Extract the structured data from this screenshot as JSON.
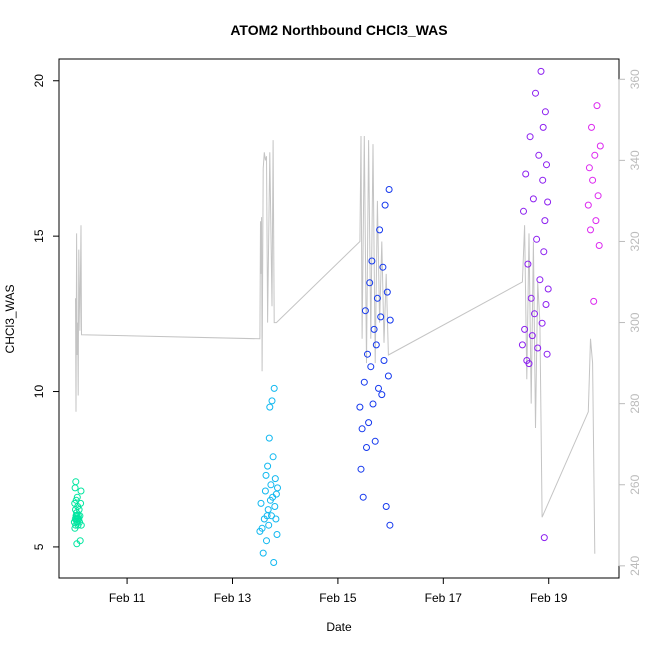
{
  "chart_data": {
    "type": "scatter",
    "title": "ATOM2 Northbound CHCl3_WAS",
    "xlabel": "Date",
    "ylabel": "CHCl3_WAS",
    "x_axis_type": "date",
    "xlim": [
      "2016-02-09T17:00",
      "2016-02-20T08:00"
    ],
    "ylim": [
      4.0,
      20.7
    ],
    "y2lim": [
      237,
      365
    ],
    "x_ticks": [
      {
        "date": "2016-02-11",
        "label": "Feb 11"
      },
      {
        "date": "2016-02-13",
        "label": "Feb 13"
      },
      {
        "date": "2016-02-15",
        "label": "Feb 15"
      },
      {
        "date": "2016-02-17",
        "label": "Feb 17"
      },
      {
        "date": "2016-02-19",
        "label": "Feb 19"
      }
    ],
    "y_ticks": [
      5,
      10,
      15,
      20
    ],
    "y2_ticks": [
      240,
      260,
      280,
      300,
      320,
      340,
      360
    ],
    "grid": false,
    "legend": "none",
    "colors": {
      "axis": "#000000",
      "secondary_axis": "#bbbbbb",
      "line": "#c4c4c4",
      "frame": "#000000"
    },
    "point_colors": [
      "#00e6a0",
      "#10b8f0",
      "#1438ee",
      "#8c1ff0",
      "#dc28f0"
    ],
    "line_series": {
      "axis": "right",
      "points": [
        [
          "2016-02-10T00:30",
          306
        ],
        [
          "2016-02-10T00:45",
          278
        ],
        [
          "2016-02-10T01:00",
          322
        ],
        [
          "2016-02-10T01:15",
          292
        ],
        [
          "2016-02-10T01:30",
          300
        ],
        [
          "2016-02-10T01:45",
          282
        ],
        [
          "2016-02-10T02:00",
          318
        ],
        [
          "2016-02-10T02:30",
          298
        ],
        [
          "2016-02-10T03:00",
          324
        ],
        [
          "2016-02-10T03:15",
          297
        ],
        [
          "2016-02-13T12:30",
          296
        ],
        [
          "2016-02-13T12:45",
          325
        ],
        [
          "2016-02-13T13:00",
          312
        ],
        [
          "2016-02-13T13:15",
          326
        ],
        [
          "2016-02-13T13:30",
          288
        ],
        [
          "2016-02-13T14:00",
          338
        ],
        [
          "2016-02-13T14:30",
          342
        ],
        [
          "2016-02-13T15:00",
          340
        ],
        [
          "2016-02-13T15:30",
          341
        ],
        [
          "2016-02-13T16:00",
          300
        ],
        [
          "2016-02-13T17:00",
          342
        ],
        [
          "2016-02-13T18:00",
          304
        ],
        [
          "2016-02-13T18:30",
          345
        ],
        [
          "2016-02-13T19:00",
          300
        ],
        [
          "2016-02-13T20:00",
          300
        ],
        [
          "2016-02-15T10:00",
          320
        ],
        [
          "2016-02-15T10:30",
          346
        ],
        [
          "2016-02-15T11:00",
          296
        ],
        [
          "2016-02-15T12:00",
          346
        ],
        [
          "2016-02-15T13:00",
          290
        ],
        [
          "2016-02-15T14:00",
          345
        ],
        [
          "2016-02-15T15:00",
          296
        ],
        [
          "2016-02-15T16:00",
          344
        ],
        [
          "2016-02-15T17:00",
          290
        ],
        [
          "2016-02-15T18:00",
          330
        ],
        [
          "2016-02-15T19:00",
          300
        ],
        [
          "2016-02-15T20:00",
          320
        ],
        [
          "2016-02-15T21:00",
          295
        ],
        [
          "2016-02-15T22:00",
          312
        ],
        [
          "2016-02-15T23:00",
          292
        ],
        [
          "2016-02-18T12:00",
          310
        ],
        [
          "2016-02-18T13:00",
          324
        ],
        [
          "2016-02-18T14:00",
          286
        ],
        [
          "2016-02-18T15:00",
          322
        ],
        [
          "2016-02-18T16:00",
          280
        ],
        [
          "2016-02-18T17:00",
          320
        ],
        [
          "2016-02-18T18:00",
          274
        ],
        [
          "2016-02-18T19:00",
          310
        ],
        [
          "2016-02-18T20:00",
          300
        ],
        [
          "2016-02-18T21:00",
          252
        ],
        [
          "2016-02-19T18:00",
          278
        ],
        [
          "2016-02-19T19:00",
          296
        ],
        [
          "2016-02-19T20:00",
          290
        ],
        [
          "2016-02-19T21:00",
          243
        ]
      ]
    },
    "series": [
      {
        "axis": "left",
        "points": [
          [
            "2016-02-10T00:00",
            5.8
          ],
          [
            "2016-02-10T00:10",
            6.4
          ],
          [
            "2016-02-10T00:15",
            5.6
          ],
          [
            "2016-02-10T00:20",
            6.9
          ],
          [
            "2016-02-10T00:25",
            5.9
          ],
          [
            "2016-02-10T00:30",
            6.2
          ],
          [
            "2016-02-10T00:35",
            5.7
          ],
          [
            "2016-02-10T00:40",
            7.1
          ],
          [
            "2016-02-10T00:45",
            6.0
          ],
          [
            "2016-02-10T00:50",
            6.5
          ],
          [
            "2016-02-10T00:55",
            5.9
          ],
          [
            "2016-02-10T01:00",
            6.1
          ],
          [
            "2016-02-10T01:05",
            5.1
          ],
          [
            "2016-02-10T01:10",
            6.0
          ],
          [
            "2016-02-10T01:15",
            5.8
          ],
          [
            "2016-02-10T01:20",
            6.6
          ],
          [
            "2016-02-10T01:25",
            5.9
          ],
          [
            "2016-02-10T01:30",
            6.3
          ],
          [
            "2016-02-10T01:40",
            5.7
          ],
          [
            "2016-02-10T01:50",
            6.0
          ],
          [
            "2016-02-10T02:00",
            5.9
          ],
          [
            "2016-02-10T02:10",
            6.2
          ],
          [
            "2016-02-10T02:20",
            5.8
          ],
          [
            "2016-02-10T02:30",
            6.0
          ],
          [
            "2016-02-10T02:40",
            5.2
          ],
          [
            "2016-02-10T02:50",
            6.4
          ],
          [
            "2016-02-10T03:00",
            6.8
          ],
          [
            "2016-02-10T03:10",
            5.7
          ]
        ]
      },
      {
        "axis": "left",
        "points": [
          [
            "2016-02-13T12:30",
            5.5
          ],
          [
            "2016-02-13T13:00",
            6.4
          ],
          [
            "2016-02-13T13:30",
            5.6
          ],
          [
            "2016-02-13T14:00",
            4.8
          ],
          [
            "2016-02-13T14:30",
            5.9
          ],
          [
            "2016-02-13T15:00",
            6.8
          ],
          [
            "2016-02-13T15:15",
            7.3
          ],
          [
            "2016-02-13T15:30",
            5.2
          ],
          [
            "2016-02-13T15:45",
            6.0
          ],
          [
            "2016-02-13T16:00",
            7.6
          ],
          [
            "2016-02-13T16:15",
            6.2
          ],
          [
            "2016-02-13T16:30",
            5.7
          ],
          [
            "2016-02-13T16:45",
            8.5
          ],
          [
            "2016-02-13T17:00",
            9.5
          ],
          [
            "2016-02-13T17:15",
            6.5
          ],
          [
            "2016-02-13T17:30",
            7.0
          ],
          [
            "2016-02-13T17:45",
            6.0
          ],
          [
            "2016-02-13T18:00",
            9.7
          ],
          [
            "2016-02-13T18:15",
            6.6
          ],
          [
            "2016-02-13T18:30",
            7.9
          ],
          [
            "2016-02-13T18:45",
            4.5
          ],
          [
            "2016-02-13T19:00",
            10.1
          ],
          [
            "2016-02-13T19:15",
            6.3
          ],
          [
            "2016-02-13T19:30",
            7.2
          ],
          [
            "2016-02-13T19:45",
            5.9
          ],
          [
            "2016-02-13T20:00",
            6.7
          ],
          [
            "2016-02-13T20:15",
            5.4
          ],
          [
            "2016-02-13T20:30",
            6.9
          ]
        ]
      },
      {
        "axis": "left",
        "points": [
          [
            "2016-02-15T10:00",
            9.5
          ],
          [
            "2016-02-15T10:30",
            7.5
          ],
          [
            "2016-02-15T11:00",
            8.8
          ],
          [
            "2016-02-15T11:30",
            6.6
          ],
          [
            "2016-02-15T12:00",
            10.3
          ],
          [
            "2016-02-15T12:30",
            12.6
          ],
          [
            "2016-02-15T13:00",
            8.2
          ],
          [
            "2016-02-15T13:30",
            11.2
          ],
          [
            "2016-02-15T14:00",
            9.0
          ],
          [
            "2016-02-15T14:30",
            13.5
          ],
          [
            "2016-02-15T15:00",
            10.8
          ],
          [
            "2016-02-15T15:30",
            14.2
          ],
          [
            "2016-02-15T16:00",
            9.6
          ],
          [
            "2016-02-15T16:30",
            12.0
          ],
          [
            "2016-02-15T17:00",
            8.4
          ],
          [
            "2016-02-15T17:30",
            11.5
          ],
          [
            "2016-02-15T18:00",
            13.0
          ],
          [
            "2016-02-15T18:30",
            10.1
          ],
          [
            "2016-02-15T19:00",
            15.2
          ],
          [
            "2016-02-15T19:30",
            12.4
          ],
          [
            "2016-02-15T20:00",
            9.9
          ],
          [
            "2016-02-15T20:30",
            14.0
          ],
          [
            "2016-02-15T21:00",
            11.0
          ],
          [
            "2016-02-15T21:30",
            16.0
          ],
          [
            "2016-02-15T22:00",
            6.3
          ],
          [
            "2016-02-15T22:30",
            13.2
          ],
          [
            "2016-02-15T23:00",
            10.5
          ],
          [
            "2016-02-15T23:20",
            16.5
          ],
          [
            "2016-02-15T23:40",
            5.7
          ],
          [
            "2016-02-15T23:50",
            12.3
          ]
        ]
      },
      {
        "axis": "left",
        "points": [
          [
            "2016-02-18T12:00",
            11.5
          ],
          [
            "2016-02-18T12:30",
            15.8
          ],
          [
            "2016-02-18T13:00",
            12.0
          ],
          [
            "2016-02-18T13:30",
            17.0
          ],
          [
            "2016-02-18T14:00",
            11.0
          ],
          [
            "2016-02-18T14:30",
            14.1
          ],
          [
            "2016-02-18T15:00",
            10.9
          ],
          [
            "2016-02-18T15:30",
            18.2
          ],
          [
            "2016-02-18T16:00",
            13.0
          ],
          [
            "2016-02-18T16:30",
            11.8
          ],
          [
            "2016-02-18T17:00",
            16.2
          ],
          [
            "2016-02-18T17:30",
            12.5
          ],
          [
            "2016-02-18T18:00",
            19.6
          ],
          [
            "2016-02-18T18:30",
            14.9
          ],
          [
            "2016-02-18T19:00",
            11.4
          ],
          [
            "2016-02-18T19:30",
            17.6
          ],
          [
            "2016-02-18T20:00",
            13.6
          ],
          [
            "2016-02-18T20:30",
            20.3
          ],
          [
            "2016-02-18T21:00",
            12.2
          ],
          [
            "2016-02-18T21:15",
            16.8
          ],
          [
            "2016-02-18T21:30",
            18.5
          ],
          [
            "2016-02-18T21:45",
            14.5
          ],
          [
            "2016-02-18T22:00",
            5.3
          ],
          [
            "2016-02-18T22:15",
            15.5
          ],
          [
            "2016-02-18T22:30",
            19.0
          ],
          [
            "2016-02-18T22:45",
            12.8
          ],
          [
            "2016-02-18T23:00",
            17.3
          ],
          [
            "2016-02-18T23:15",
            11.2
          ],
          [
            "2016-02-18T23:30",
            16.1
          ],
          [
            "2016-02-18T23:45",
            13.3
          ]
        ]
      },
      {
        "axis": "left",
        "points": [
          [
            "2016-02-19T18:00",
            16.0
          ],
          [
            "2016-02-19T18:30",
            17.2
          ],
          [
            "2016-02-19T19:00",
            15.2
          ],
          [
            "2016-02-19T19:30",
            18.5
          ],
          [
            "2016-02-19T20:00",
            16.8
          ],
          [
            "2016-02-19T20:30",
            12.9
          ],
          [
            "2016-02-19T21:00",
            17.6
          ],
          [
            "2016-02-19T21:30",
            15.5
          ],
          [
            "2016-02-19T22:00",
            19.2
          ],
          [
            "2016-02-19T22:30",
            16.3
          ],
          [
            "2016-02-19T23:00",
            14.7
          ],
          [
            "2016-02-19T23:30",
            17.9
          ]
        ]
      }
    ]
  }
}
